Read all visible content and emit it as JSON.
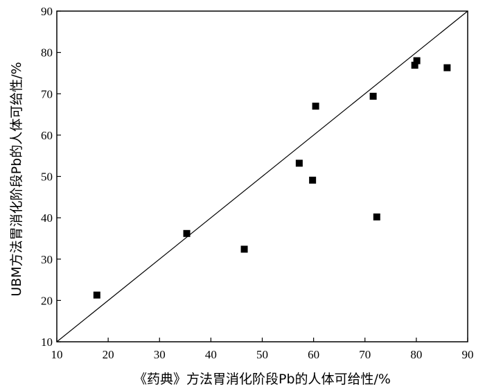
{
  "chart_data": {
    "type": "scatter",
    "title": "",
    "xlabel": "《药典》方法胃消化阶段Pb的人体可给性/%",
    "ylabel": "UBM方法胃消化阶段Pb的人体可给性/%",
    "xlim": [
      10,
      90
    ],
    "ylim": [
      10,
      90
    ],
    "xticks": [
      10,
      20,
      30,
      40,
      50,
      60,
      70,
      80,
      90
    ],
    "yticks": [
      10,
      20,
      30,
      40,
      50,
      60,
      70,
      80,
      90
    ],
    "grid": false,
    "reference_line": {
      "type": "y=x",
      "from": [
        10,
        10
      ],
      "to": [
        90,
        90
      ]
    },
    "series": [
      {
        "marker": "square",
        "color": "#000000",
        "points": [
          {
            "x": 17.8,
            "y": 21.3
          },
          {
            "x": 35.3,
            "y": 36.2
          },
          {
            "x": 46.5,
            "y": 32.4
          },
          {
            "x": 57.2,
            "y": 53.2
          },
          {
            "x": 59.8,
            "y": 49.1
          },
          {
            "x": 60.4,
            "y": 67.0
          },
          {
            "x": 71.6,
            "y": 69.4
          },
          {
            "x": 72.3,
            "y": 40.2
          },
          {
            "x": 79.7,
            "y": 76.9
          },
          {
            "x": 80.1,
            "y": 78.0
          },
          {
            "x": 86.0,
            "y": 76.3
          }
        ]
      }
    ]
  }
}
